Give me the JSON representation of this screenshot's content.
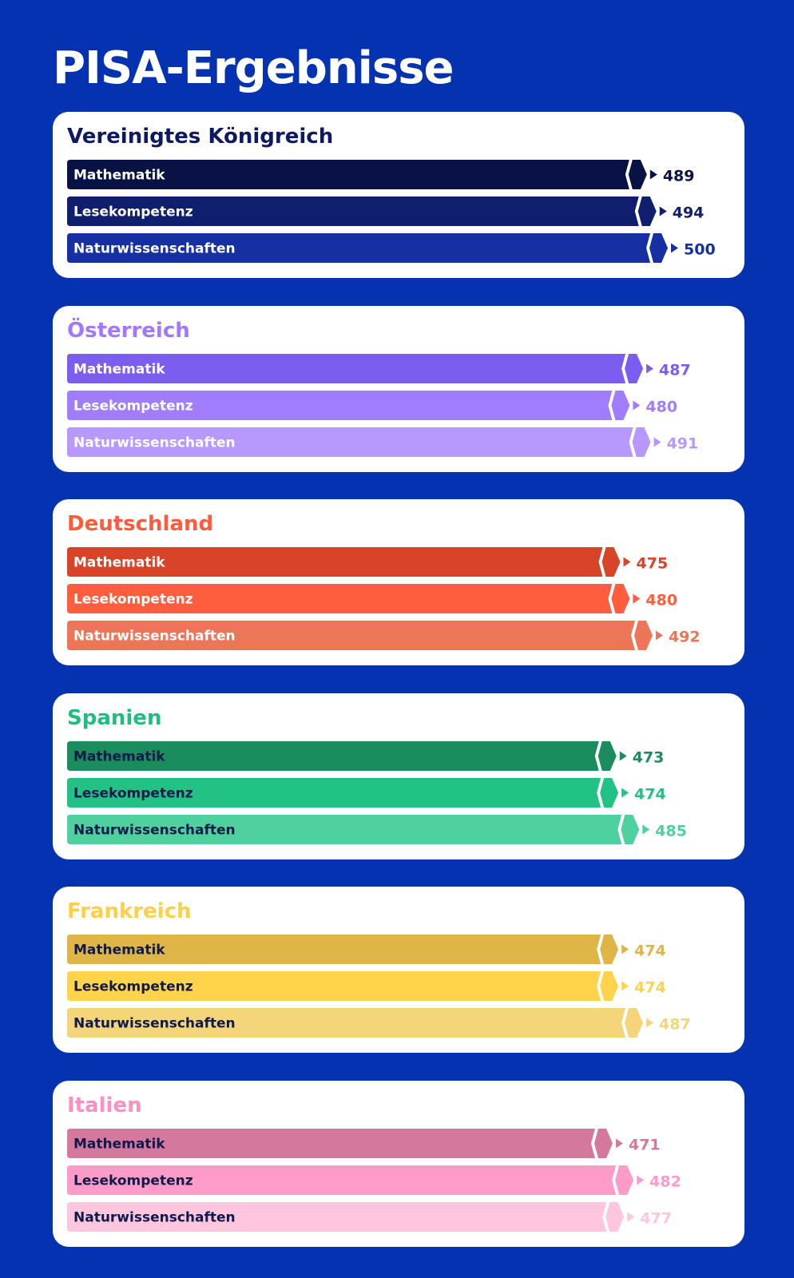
{
  "title": "PISA-Ergebnisse",
  "colors": {
    "background": "#0432b0",
    "card": "#ffffff"
  },
  "chart_data": [
    {
      "type": "bar",
      "title": "Vereinigtes Königreich",
      "title_color": "#0d1a63",
      "categories": [
        "Mathematik",
        "Lesekompetenz",
        "Naturwissenschaften"
      ],
      "values": [
        489,
        494,
        500
      ],
      "bar_colors": [
        "#081244",
        "#101e6e",
        "#1530a2"
      ],
      "label_color": "#ffffff",
      "value_colors": [
        "#081244",
        "#101e6e",
        "#1530a2"
      ]
    },
    {
      "type": "bar",
      "title": "Österreich",
      "title_color": "#a178ff",
      "categories": [
        "Mathematik",
        "Lesekompetenz",
        "Naturwissenschaften"
      ],
      "values": [
        487,
        480,
        491
      ],
      "bar_colors": [
        "#7b5ef0",
        "#a07dff",
        "#b698ff"
      ],
      "label_color": "#ffffff",
      "value_colors": [
        "#7b5ef0",
        "#a07dff",
        "#b698ff"
      ]
    },
    {
      "type": "bar",
      "title": "Deutschland",
      "title_color": "#ff5a3a",
      "categories": [
        "Mathematik",
        "Lesekompetenz",
        "Naturwissenschaften"
      ],
      "values": [
        475,
        480,
        492
      ],
      "bar_colors": [
        "#d84428",
        "#ff5e3e",
        "#ee7658"
      ],
      "label_color": "#ffffff",
      "value_colors": [
        "#d84428",
        "#ff5e3e",
        "#ee7658"
      ]
    },
    {
      "type": "bar",
      "title": "Spanien",
      "title_color": "#1fbe80",
      "categories": [
        "Mathematik",
        "Lesekompetenz",
        "Naturwissenschaften"
      ],
      "values": [
        473,
        474,
        485
      ],
      "bar_colors": [
        "#1a8c5e",
        "#22c285",
        "#4ed19f"
      ],
      "label_color": "#0d1a4a",
      "value_colors": [
        "#1a8c5e",
        "#22c285",
        "#4ed19f"
      ]
    },
    {
      "type": "bar",
      "title": "Frankreich",
      "title_color": "#ffcf47",
      "categories": [
        "Mathematik",
        "Lesekompetenz",
        "Naturwissenschaften"
      ],
      "values": [
        474,
        474,
        487
      ],
      "bar_colors": [
        "#e0b548",
        "#ffd44a",
        "#f5d57a"
      ],
      "label_color": "#0d1a4a",
      "value_colors": [
        "#e0b548",
        "#ffd44a",
        "#f5d57a"
      ]
    },
    {
      "type": "bar",
      "title": "Italien",
      "title_color": "#ff8fc3",
      "categories": [
        "Mathematik",
        "Lesekompetenz",
        "Naturwissenschaften"
      ],
      "values": [
        471,
        482,
        477
      ],
      "bar_colors": [
        "#d4789e",
        "#ff9bc8",
        "#ffc6de"
      ],
      "label_color": "#0d1a4a",
      "value_colors": [
        "#d4789e",
        "#ff9bc8",
        "#ffc6de"
      ]
    }
  ]
}
